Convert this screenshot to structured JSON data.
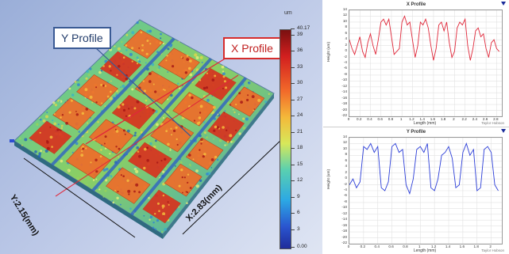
{
  "surface_view": {
    "colorbar": {
      "unit": "um",
      "labels": [
        "40.17",
        "39",
        "36",
        "33",
        "30",
        "27",
        "24",
        "21",
        "18",
        "15",
        "12",
        "9",
        "6",
        "3",
        "0.00"
      ]
    },
    "callouts": {
      "y_profile": "Y Profile",
      "x_profile": "X Profile"
    },
    "axis_labels": {
      "y": "Y:2.15(mm)",
      "x": "X:2.83(mm)"
    }
  },
  "x_profile_panel": {
    "title": "X Profile",
    "ylabel": "Height (um)",
    "xlabel": "Length (mm)",
    "note": "Taylor Hobson",
    "color": "#e0283a",
    "yticks": [
      "14",
      "12",
      "10",
      "8",
      "6",
      "4",
      "2",
      "0",
      "-2",
      "-4",
      "-6",
      "-8",
      "-10",
      "-12",
      "-14",
      "-16",
      "-18",
      "-20",
      "-22"
    ],
    "xticks": [
      "0",
      "0.2",
      "0.4",
      "0.6",
      "0.8",
      "1",
      "1.2",
      "1.4",
      "1.6",
      "1.8",
      "2",
      "2.2",
      "2.4",
      "2.6",
      "2.8"
    ],
    "chart_data": {
      "type": "line",
      "title": "X Profile",
      "xlabel": "Length (mm)",
      "ylabel": "Height (um)",
      "xlim": [
        0,
        2.9
      ],
      "ylim": [
        -22,
        14
      ],
      "series": [
        {
          "x": [
            0,
            0.05,
            0.1,
            0.15,
            0.2,
            0.25,
            0.3,
            0.35,
            0.4,
            0.45,
            0.5,
            0.55,
            0.6,
            0.65,
            0.7,
            0.75,
            0.8,
            0.85,
            0.9,
            0.95,
            1.0,
            1.05,
            1.1,
            1.15,
            1.2,
            1.25,
            1.3,
            1.35,
            1.4,
            1.45,
            1.5,
            1.55,
            1.6,
            1.65,
            1.7,
            1.75,
            1.8,
            1.85,
            1.9,
            1.95,
            2.0,
            2.05,
            2.1,
            2.15,
            2.2,
            2.25,
            2.3,
            2.35,
            2.4,
            2.45,
            2.5,
            2.55,
            2.6,
            2.65,
            2.7,
            2.75,
            2.8,
            2.85
          ],
          "values": [
            4,
            1,
            -1,
            2,
            5,
            0,
            -2,
            3,
            6,
            2,
            -1,
            4,
            10,
            11,
            9,
            11,
            5,
            -1,
            0,
            1,
            10,
            12,
            9,
            10,
            4,
            -2,
            2,
            10,
            9,
            11,
            8,
            2,
            -3,
            1,
            9,
            10,
            7,
            10,
            3,
            -2,
            0,
            8,
            10,
            9,
            11,
            2,
            -3,
            1,
            7,
            8,
            5,
            6,
            1,
            -2,
            3,
            4,
            1,
            0
          ]
        }
      ]
    }
  },
  "y_profile_panel": {
    "title": "Y Profile",
    "ylabel": "Height (um)",
    "xlabel": "Length (mm)",
    "note": "Taylor Hobson",
    "color": "#2c3ed8",
    "yticks": [
      "14",
      "12",
      "10",
      "8",
      "6",
      "4",
      "2",
      "0",
      "-2",
      "-4",
      "-6",
      "-8",
      "-10",
      "-12",
      "-14",
      "-16",
      "-18",
      "-20",
      "-22"
    ],
    "xticks": [
      "0",
      "0.2",
      "0.4",
      "0.6",
      "0.8",
      "1",
      "1.2",
      "1.4",
      "1.6",
      "1.8",
      "2"
    ],
    "chart_data": {
      "type": "line",
      "title": "Y Profile",
      "xlabel": "Length (mm)",
      "ylabel": "Height (um)",
      "xlim": [
        0,
        2.15
      ],
      "ylim": [
        -22,
        14
      ],
      "series": [
        {
          "x": [
            0,
            0.05,
            0.1,
            0.15,
            0.2,
            0.25,
            0.3,
            0.35,
            0.4,
            0.45,
            0.5,
            0.55,
            0.6,
            0.65,
            0.7,
            0.75,
            0.8,
            0.85,
            0.9,
            0.95,
            1.0,
            1.05,
            1.1,
            1.15,
            1.2,
            1.25,
            1.3,
            1.35,
            1.4,
            1.45,
            1.5,
            1.55,
            1.6,
            1.65,
            1.7,
            1.75,
            1.8,
            1.85,
            1.9,
            1.95,
            2.0,
            2.05,
            2.1
          ],
          "values": [
            -2,
            0,
            -3,
            -1,
            11,
            10,
            12,
            9,
            11,
            -3,
            -4,
            -1,
            11,
            12,
            9,
            10,
            -2,
            -5,
            0,
            10,
            11,
            9,
            12,
            -3,
            -4,
            0,
            8,
            9,
            11,
            7,
            -3,
            -2,
            9,
            12,
            8,
            10,
            -4,
            -3,
            10,
            11,
            9,
            -2,
            -4
          ]
        }
      ]
    }
  }
}
